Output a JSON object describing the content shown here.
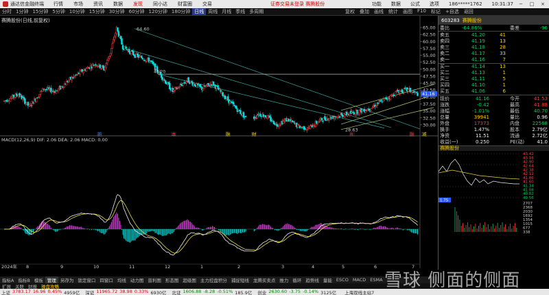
{
  "titlebar": {
    "app": "通达信金融终端",
    "menu": [
      "行情",
      "市场",
      "资讯",
      "数据",
      "发现",
      "同小达",
      "财富圈",
      "交易"
    ],
    "notice": "证券交易未登录",
    "stock_tag": "赛腾股份",
    "right": [
      "功能",
      "数据",
      "公式",
      "选项",
      "186*****1762",
      "10:31:37"
    ],
    "window_buttons": [
      "−",
      "□",
      "×"
    ]
  },
  "toolbar": {
    "periods": [
      "分时",
      "1分钟",
      "15分钟",
      "5分钟",
      "10分钟",
      "15分钟",
      "30分钟",
      "60分钟",
      "120分钟",
      "180分钟",
      "日线",
      "周线",
      "月线",
      "季线",
      "多周期"
    ],
    "active_period": "日线",
    "tools": [
      "复权",
      "叠加",
      "画线",
      "统计",
      "画图",
      "F10",
      "标记",
      "+自选",
      "返回"
    ]
  },
  "chart": {
    "caption": "赛腾股份(日线,前复权)",
    "price_labels": [
      "65.00",
      "62.50",
      "60.00",
      "57.50",
      "55.00",
      "52.50",
      "50.00",
      "47.50",
      "45.00",
      "42.50",
      "40.00",
      "37.50",
      "35.00",
      "32.50",
      "30.00"
    ],
    "annot_high": "64.60",
    "annot_low": "28.63",
    "annot_mid": "48.20",
    "current_price_tag": "41.16",
    "dates": [
      "2024年",
      "8",
      "9",
      "10",
      "11",
      "12",
      "1",
      "2",
      "3",
      "4",
      "5",
      "6",
      "7"
    ],
    "markers": [
      {
        "text": "新",
        "color": "#3070ff"
      },
      {
        "text": "本",
        "color": "#ff3030"
      },
      {
        "text": "融",
        "color": "#ffd200"
      },
      {
        "text": "财",
        "color": "#ffd200"
      },
      {
        "text": "B",
        "color": "#ff3030"
      },
      {
        "text": "融",
        "color": "#ff3030"
      },
      {
        "text": "减",
        "color": "#ffd200"
      }
    ],
    "macd_caption": "MACD(12,26,9) DIF: 2.06  DEA: 2.06  MACD: 0.00"
  },
  "chart_data": {
    "type": "candlestick",
    "title": "赛腾股份(日线,前复权)",
    "ylim": [
      28,
      66
    ],
    "x_months": [
      "8",
      "9",
      "10",
      "11",
      "12",
      "1",
      "2",
      "3",
      "4",
      "5",
      "6",
      "7"
    ],
    "key_points": {
      "high": 64.6,
      "low": 28.63,
      "last": 41.16
    },
    "indicator": {
      "name": "MACD(12,26,9)",
      "DIF": 2.06,
      "DEA": 2.06,
      "MACD": 0.0
    }
  },
  "quote": {
    "code": "603283",
    "name": "赛腾股份",
    "webi": {
      "label": "委比",
      "value": "-64.86%",
      "label2": "委差",
      "value2": "-96"
    },
    "asks": [
      {
        "label": "卖五",
        "price": "41.20",
        "vol": "41"
      },
      {
        "label": "卖四",
        "price": "41.19",
        "vol": "13"
      },
      {
        "label": "卖三",
        "price": "41.18",
        "vol": "28"
      },
      {
        "label": "卖二",
        "price": "41.17",
        "vol": "33"
      },
      {
        "label": "卖一",
        "price": "41.16",
        "vol": "7"
      }
    ],
    "bids": [
      {
        "label": "买一",
        "price": "41.14",
        "vol": "13"
      },
      {
        "label": "买二",
        "price": "41.13",
        "vol": "1"
      },
      {
        "label": "买三",
        "price": "41.11",
        "vol": "5"
      },
      {
        "label": "买四",
        "price": "41.10",
        "vol": "1"
      },
      {
        "label": "买五",
        "price": "41.06",
        "vol": "6"
      }
    ],
    "stats": [
      {
        "l1": "现价",
        "v1": "41.16",
        "l2": "今开",
        "v2": "41.53"
      },
      {
        "l1": "涨跌",
        "v1": "-0.42",
        "l2": "最高",
        "v2": "41.88"
      },
      {
        "l1": "涨幅",
        "v1": "-1.01%",
        "l2": "最低",
        "v2": "40.70"
      },
      {
        "l1": "总量",
        "v1": "39941",
        "l2": "量比",
        "v2": "0.96"
      },
      {
        "l1": "外盘",
        "v1": "17373",
        "l2": "内盘",
        "v2": "22568"
      },
      {
        "l1": "换手",
        "v1": "1.47%",
        "l2": "股本",
        "v2": "2.79亿"
      },
      {
        "l1": "净资",
        "v1": "11.51",
        "l2": "流通",
        "v2": "2.72亿"
      },
      {
        "l1": "收益(一)",
        "v1": "0.250",
        "l2": "PE(动)",
        "v2": "41.0"
      }
    ],
    "intraday_title": "赛腾股份",
    "intraday_prices": [
      "43.42",
      "43.16",
      "42.90",
      "42.64",
      "42.38",
      "42.12",
      "41.86",
      "41.60",
      "41.34",
      "41.08",
      "40.82",
      "40.56"
    ],
    "intraday_vols": [
      "2707",
      "2368",
      "2030",
      "1692",
      "1354",
      "1015",
      "677",
      "338"
    ],
    "pct_tag": "1.75",
    "bottom_labels": [
      "9:30",
      "14:00"
    ]
  },
  "tabs": [
    "指标A",
    "指标B",
    "模板",
    "管理",
    "另存为",
    "锁定窗口",
    "四窗口",
    "均线",
    "动力图",
    "普利图",
    "形态图",
    "超级图",
    "主力控盘积分",
    "捕捉短线",
    "龙腾买卖点",
    "推力",
    "循环",
    "趋势线",
    "量能",
    "ESCO",
    "MACD",
    "ESMA"
  ],
  "active_tab": "管理",
  "tabs2": [
    "扩展",
    "关联",
    "财报",
    "操盘攻略"
  ],
  "statusbar": [
    {
      "name": "上证",
      "val": "3783.17",
      "chg": "16.96",
      "pct": "0.45%",
      "vol": "4959亿",
      "dir": "up"
    },
    {
      "name": "深证",
      "val": "11965.72",
      "chg": "38.98",
      "pct": "0.33%",
      "vol": "6930亿",
      "dir": "up"
    },
    {
      "name": "北证",
      "val": "1606.88",
      "chg": "-8.28",
      "pct": "-0.51%",
      "vol": "185.9亿",
      "dir": "dn"
    },
    {
      "name": "创业",
      "val": "2630.60",
      "chg": "-3.75",
      "pct": "-0.14%",
      "vol": "3125亿",
      "dir": "dn"
    }
  ],
  "status_right": "上海双线主站7",
  "watermark": "雪球 侧面的侧面"
}
